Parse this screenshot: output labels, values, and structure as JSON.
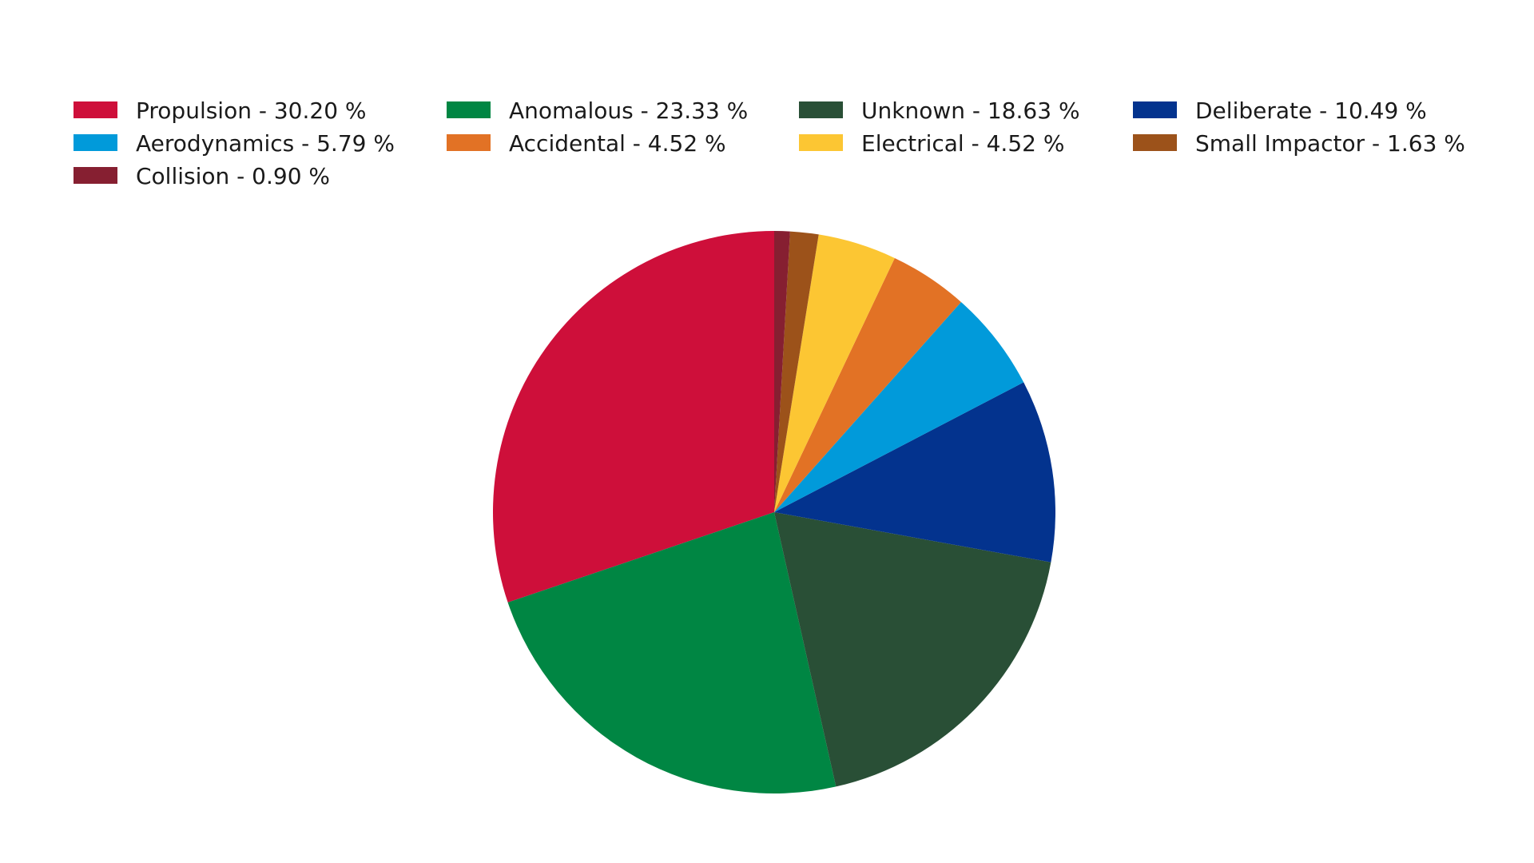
{
  "chart_data": {
    "type": "pie",
    "title": "",
    "legend_position": "top",
    "slices": [
      {
        "label": "Propulsion - 30.20 %",
        "name": "Propulsion",
        "value": 30.2,
        "color": "#CE0F3A"
      },
      {
        "label": "Anomalous - 23.33 %",
        "name": "Anomalous",
        "value": 23.33,
        "color": "#008643"
      },
      {
        "label": "Unknown - 18.63 %",
        "name": "Unknown",
        "value": 18.63,
        "color": "#294F36"
      },
      {
        "label": "Deliberate - 10.49 %",
        "name": "Deliberate",
        "value": 10.49,
        "color": "#03338E"
      },
      {
        "label": "Aerodynamics - 5.79 %",
        "name": "Aerodynamics",
        "value": 5.79,
        "color": "#019ADA"
      },
      {
        "label": "Accidental - 4.52 %",
        "name": "Accidental",
        "value": 4.52,
        "color": "#E27225"
      },
      {
        "label": "Electrical - 4.52 %",
        "name": "Electrical",
        "value": 4.52,
        "color": "#FCC633"
      },
      {
        "label": "Small Impactor - 1.63 %",
        "name": "Small Impactor",
        "value": 1.63,
        "color": "#9C521A"
      },
      {
        "label": "Collision - 0.90 %",
        "name": "Collision",
        "value": 0.9,
        "color": "#861F31"
      }
    ]
  }
}
